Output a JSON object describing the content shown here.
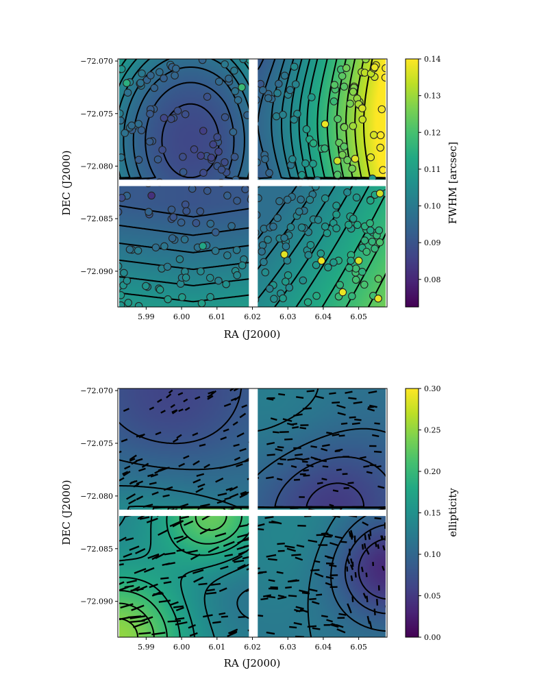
{
  "colormap": "viridis",
  "chart_data": [
    {
      "type": "heatmap",
      "overlays": [
        "contour",
        "scatter"
      ],
      "xlabel": "RA (J2000)",
      "ylabel": "DEC (J2000)",
      "xlim": [
        5.982,
        6.058
      ],
      "ylim": [
        -72.0934,
        -72.0698
      ],
      "xticks": [
        5.99,
        6.0,
        6.01,
        6.02,
        6.03,
        6.04,
        6.05
      ],
      "xtick_labels": [
        "5.99",
        "6.00",
        "6.01",
        "6.02",
        "6.03",
        "6.04",
        "6.05"
      ],
      "yticks": [
        -72.07,
        -72.075,
        -72.08,
        -72.085,
        -72.09
      ],
      "ytick_labels": [
        "−72.070",
        "−72.075",
        "−72.080",
        "−72.085",
        "−72.090"
      ],
      "colorbar": {
        "label": "FWHM [arcsec]",
        "range": [
          0.0725,
          0.14
        ],
        "ticks": [
          0.08,
          0.09,
          0.1,
          0.11,
          0.12,
          0.13,
          0.14
        ],
        "tick_labels": [
          "0.08",
          "0.09",
          "0.10",
          "0.11",
          "0.12",
          "0.13",
          "0.14"
        ]
      },
      "chip_gaps": {
        "ra": [
          6.019,
          6.0215
        ],
        "dec": [
          -72.0819,
          -72.0813
        ]
      },
      "field_min": {
        "ra": 6.006,
        "dec": -72.0765,
        "value": 0.087
      },
      "field_max": {
        "ra": 6.058,
        "dec": -72.0712,
        "value": 0.138
      },
      "stars_approximate": [
        {
          "ra": 5.9845,
          "dec": -72.0721,
          "fwhm": 0.115
        },
        {
          "ra": 6.017,
          "dec": -72.0725,
          "fwhm": 0.118
        },
        {
          "ra": 6.051,
          "dec": -72.0745,
          "fwhm": 0.136
        },
        {
          "ra": 6.0545,
          "dec": -72.0706,
          "fwhm": 0.138
        },
        {
          "ra": 6.0405,
          "dec": -72.076,
          "fwhm": 0.138
        },
        {
          "ra": 6.044,
          "dec": -72.0795,
          "fwhm": 0.135
        },
        {
          "ra": 6.049,
          "dec": -72.0793,
          "fwhm": 0.137
        },
        {
          "ra": 6.056,
          "dec": -72.0826,
          "fwhm": 0.135
        },
        {
          "ra": 5.9915,
          "dec": -72.0828,
          "fwhm": 0.082
        },
        {
          "ra": 6.006,
          "dec": -72.0876,
          "fwhm": 0.112
        },
        {
          "ra": 6.029,
          "dec": -72.0884,
          "fwhm": 0.137
        },
        {
          "ra": 6.0395,
          "dec": -72.089,
          "fwhm": 0.138
        },
        {
          "ra": 6.0455,
          "dec": -72.092,
          "fwhm": 0.138
        },
        {
          "ra": 6.0555,
          "dec": -72.0926,
          "fwhm": 0.138
        },
        {
          "ra": 6.05,
          "dec": -72.089,
          "fwhm": 0.136
        }
      ]
    },
    {
      "type": "heatmap",
      "overlays": [
        "contour",
        "whiskers"
      ],
      "xlabel": "RA (J2000)",
      "ylabel": "DEC (J2000)",
      "xlim": [
        5.982,
        6.058
      ],
      "ylim": [
        -72.0934,
        -72.0698
      ],
      "xticks": [
        5.99,
        6.0,
        6.01,
        6.02,
        6.03,
        6.04,
        6.05
      ],
      "xtick_labels": [
        "5.99",
        "6.00",
        "6.01",
        "6.02",
        "6.03",
        "6.04",
        "6.05"
      ],
      "yticks": [
        -72.07,
        -72.075,
        -72.08,
        -72.085,
        -72.09
      ],
      "ytick_labels": [
        "−72.070",
        "−72.075",
        "−72.080",
        "−72.085",
        "−72.090"
      ],
      "colorbar": {
        "label": "ellipticity",
        "range": [
          0.0,
          0.3
        ],
        "ticks": [
          0.0,
          0.05,
          0.1,
          0.15,
          0.2,
          0.25,
          0.3
        ],
        "tick_labels": [
          "0.00",
          "0.05",
          "0.10",
          "0.15",
          "0.20",
          "0.25",
          "0.30"
        ]
      },
      "chip_gaps": {
        "ra": [
          6.019,
          6.0215
        ],
        "dec": [
          -72.0819,
          -72.0813
        ]
      },
      "regions_approximate": [
        {
          "ra": 5.983,
          "dec": -72.093,
          "ellipticity": 0.27
        },
        {
          "ra": 6.005,
          "dec": -72.0825,
          "ellipticity": 0.23
        },
        {
          "ra": 5.998,
          "dec": -72.072,
          "ellipticity": 0.09
        },
        {
          "ra": 6.036,
          "dec": -72.0805,
          "ellipticity": 0.06
        },
        {
          "ra": 6.057,
          "dec": -72.087,
          "ellipticity": 0.03
        },
        {
          "ra": 6.03,
          "dec": -72.088,
          "ellipticity": 0.13
        }
      ]
    }
  ]
}
